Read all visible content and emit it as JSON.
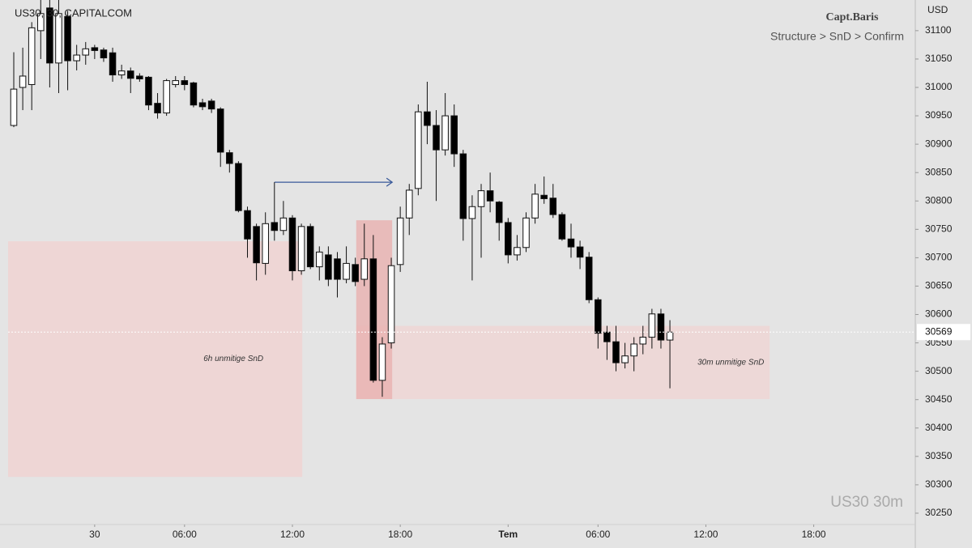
{
  "chart_data": {
    "type": "candlestick",
    "symbol": "US30, 30, CAPITALCOM",
    "author": "Capt.Baris",
    "subtitle": "Structure > SnD > Confirm",
    "currency": "USD",
    "watermark": "US30 30m",
    "last_price": 30569,
    "up_color": "#ffffff",
    "down_color": "#000000",
    "open": [
      30933,
      31000,
      31005,
      31100,
      31140,
      31043,
      31125,
      31047,
      31057,
      31070,
      31066,
      31061,
      31022,
      31029,
      31020,
      31018,
      30972,
      30955,
      31005,
      31012,
      31008,
      30973,
      30976,
      30962,
      30885,
      30866,
      30783,
      30755,
      30690,
      30762,
      30748,
      30770,
      30677,
      30755,
      30684,
      30705,
      30698,
      30662,
      30688,
      30662,
      30698,
      30484,
      30550,
      30688,
      30770,
      30822,
      30957,
      30933,
      30890,
      30950,
      30883,
      30769,
      30790,
      30818,
      30798,
      30762,
      30705,
      30718,
      30770,
      30810,
      30805,
      30776,
      30733,
      30719,
      30701,
      30626,
      30569,
      30552,
      30515,
      30527,
      30548,
      30560,
      30601,
      30555
    ],
    "high": [
      31062,
      31070,
      31115,
      31160,
      31160,
      31160,
      31135,
      31075,
      31080,
      31075,
      31070,
      31070,
      31040,
      31035,
      31025,
      31020,
      30990,
      31015,
      31020,
      31020,
      31010,
      30980,
      30980,
      30965,
      30890,
      30870,
      30790,
      30760,
      30780,
      30833,
      30800,
      30775,
      30760,
      30760,
      30720,
      30720,
      30710,
      30720,
      30700,
      30760,
      30740,
      30560,
      30700,
      30790,
      30830,
      30970,
      31010,
      30960,
      30990,
      30970,
      30890,
      30810,
      30830,
      30850,
      30800,
      30770,
      30740,
      30780,
      30830,
      30843,
      30830,
      30780,
      30760,
      30730,
      30710,
      30630,
      30580,
      30580,
      30550,
      30560,
      30580,
      30610,
      30610,
      30590
    ],
    "low": [
      30930,
      30960,
      30960,
      31050,
      31000,
      30990,
      30995,
      31030,
      31040,
      31050,
      31045,
      31010,
      31015,
      30990,
      31010,
      30960,
      30945,
      30950,
      31000,
      30995,
      30965,
      30960,
      30955,
      30860,
      30850,
      30780,
      30700,
      30660,
      30670,
      30730,
      30740,
      30660,
      30670,
      30680,
      30660,
      30650,
      30630,
      30655,
      30650,
      30650,
      30480,
      30455,
      30540,
      30675,
      30740,
      30810,
      30900,
      30800,
      30880,
      30860,
      30730,
      30660,
      30700,
      30780,
      30730,
      30690,
      30695,
      30710,
      30760,
      30795,
      30770,
      30730,
      30700,
      30680,
      30620,
      30540,
      30520,
      30500,
      30505,
      30500,
      30530,
      30540,
      30540,
      30470
    ],
    "close": [
      30997,
      31020,
      31105,
      31130,
      31043,
      31130,
      31047,
      31057,
      31068,
      31065,
      31052,
      31022,
      31029,
      31016,
      31015,
      30969,
      30955,
      31012,
      31012,
      31005,
      30969,
      30966,
      30962,
      30886,
      30866,
      30783,
      30733,
      30691,
      30760,
      30748,
      30770,
      30677,
      30755,
      30684,
      30710,
      30662,
      30662,
      30690,
      30658,
      30698,
      30484,
      30548,
      30686,
      30770,
      30819,
      30957,
      30933,
      30890,
      30950,
      30883,
      30769,
      30790,
      30818,
      30800,
      30762,
      30705,
      30718,
      30770,
      30812,
      30804,
      30776,
      30733,
      30719,
      30701,
      30626,
      30567,
      30552,
      30515,
      30527,
      30548,
      30560,
      30601,
      30555,
      30569
    ],
    "xlim": [
      -0.63,
      100.3
    ],
    "xticks": [
      {
        "value": 9,
        "label": "30"
      },
      {
        "value": 19,
        "label": "06:00"
      },
      {
        "value": 31,
        "label": "12:00"
      },
      {
        "value": 43,
        "label": "18:00"
      },
      {
        "value": 55,
        "label": "Tem"
      },
      {
        "value": 65,
        "label": "06:00"
      },
      {
        "value": 77,
        "label": "12:00"
      },
      {
        "value": 89,
        "label": "18:00"
      }
    ],
    "ylim": [
      30230,
      31154
    ],
    "yticks": [
      30250,
      30300,
      30350,
      30400,
      30450,
      30500,
      30550,
      30600,
      30650,
      30700,
      30750,
      30800,
      30850,
      30900,
      30950,
      31000,
      31050,
      31100
    ],
    "zones": [
      {
        "label": "6h unmitige SnD",
        "from": -0.63,
        "to": 32.1,
        "top": 30729,
        "bottom": 30314,
        "color": "#f0d3d2"
      },
      {
        "label": "30m unmitige SnD",
        "from": 38.1,
        "to": 84.1,
        "top": 30580,
        "bottom": 30451,
        "color": "#efd6d5"
      },
      {
        "from": 38.1,
        "to": 42.1,
        "top": 30766,
        "bottom": 30451,
        "color": "#e9b4b3"
      }
    ],
    "arrow": {
      "from": 29,
      "to": 42.1,
      "price": 30833,
      "color": "#3a5a9a"
    }
  }
}
